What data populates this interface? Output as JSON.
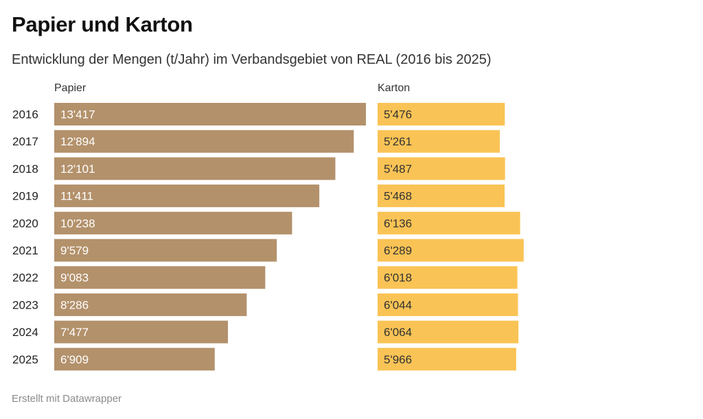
{
  "title": "Papier und Karton",
  "subtitle": "Entwicklung der Mengen (t/Jahr) im Verbandsgebiet von REAL (2016 bis 2025)",
  "footer": "Erstellt mit Datawrapper",
  "colors": {
    "papier": "#b3916b",
    "karton": "#fac355"
  },
  "chart_data": {
    "type": "bar",
    "orientation": "horizontal",
    "title": "Papier und Karton",
    "subtitle": "Entwicklung der Mengen (t/Jahr) im Verbandsgebiet von REAL (2016 bis 2025)",
    "xlabel": "",
    "ylabel": "",
    "grid": false,
    "categories": [
      "2016",
      "2017",
      "2018",
      "2019",
      "2020",
      "2021",
      "2022",
      "2023",
      "2024",
      "2025"
    ],
    "series": [
      {
        "name": "Papier",
        "values": [
          13417,
          12894,
          12101,
          11411,
          10238,
          9579,
          9083,
          8286,
          7477,
          6909
        ],
        "labels": [
          "13'417",
          "12'894",
          "12'101",
          "11'411",
          "10'238",
          "9'579",
          "9'083",
          "8'286",
          "7'477",
          "6'909"
        ]
      },
      {
        "name": "Karton",
        "values": [
          5476,
          5261,
          5487,
          5468,
          6136,
          6289,
          6018,
          6044,
          6064,
          5966
        ],
        "labels": [
          "5'476",
          "5'261",
          "5'487",
          "5'468",
          "6'136",
          "6'289",
          "6'018",
          "6'044",
          "6'064",
          "5'966"
        ]
      }
    ]
  }
}
